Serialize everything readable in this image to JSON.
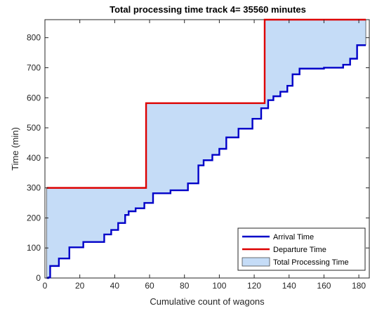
{
  "chart_data": {
    "type": "line",
    "title": "Total processing time track 4= 35560 minutes",
    "xlabel": "Cumulative count of wagons",
    "ylabel": "Time (min)",
    "xlim": [
      0,
      186
    ],
    "ylim": [
      0,
      860
    ],
    "xticks": [
      0,
      20,
      40,
      60,
      80,
      100,
      120,
      140,
      160,
      180
    ],
    "yticks": [
      0,
      100,
      200,
      300,
      400,
      500,
      600,
      700,
      800
    ],
    "grid": false,
    "legend_position": "bottom-right",
    "colors": {
      "arrival": "#0000c8",
      "departure": "#dd0000",
      "fill": "#c5dcf7",
      "fill_edge": "#1a1a1a"
    },
    "series": [
      {
        "name": "Arrival Time",
        "style": "step",
        "x": [
          1,
          2,
          3,
          5,
          8,
          14,
          22,
          34,
          38,
          42,
          46,
          48,
          52,
          57,
          62,
          72,
          82,
          88,
          91,
          96,
          100,
          104,
          111,
          119,
          124,
          128,
          131,
          135,
          139,
          142,
          146,
          151,
          160,
          171,
          175,
          179,
          182,
          184
        ],
        "y": [
          0,
          2,
          40,
          40,
          65,
          102,
          120,
          145,
          160,
          183,
          210,
          222,
          232,
          250,
          282,
          292,
          315,
          375,
          392,
          410,
          430,
          468,
          497,
          530,
          565,
          592,
          605,
          620,
          640,
          678,
          697,
          697,
          700,
          710,
          730,
          775,
          775,
          775
        ]
      },
      {
        "name": "Departure Time",
        "style": "step",
        "x": [
          1,
          58,
          126,
          184
        ],
        "y": [
          300,
          582,
          860,
          860
        ]
      }
    ],
    "area": {
      "name": "Total Processing Time",
      "between": [
        "Arrival Time",
        "Departure Time"
      ]
    }
  }
}
